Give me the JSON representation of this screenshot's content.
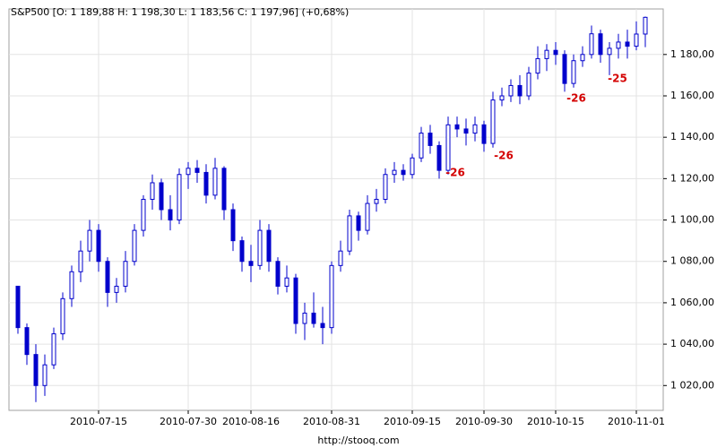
{
  "chart_data": {
    "type": "candlestick",
    "title": "S&P500 [O: 1 189,88  H: 1 198,30  L: 1 183,56  C: 1 197,96] (+0,68%)",
    "footer": "http://stooq.com",
    "color": "#0000cc",
    "grid": true,
    "categories": [
      null,
      null,
      null,
      null,
      null,
      null,
      null,
      null,
      null,
      "2010-07-15",
      null,
      null,
      null,
      null,
      null,
      null,
      null,
      null,
      null,
      "2010-07-30",
      null,
      null,
      null,
      null,
      null,
      null,
      "2010-08-16",
      null,
      null,
      null,
      null,
      null,
      null,
      null,
      null,
      "2010-08-31",
      null,
      null,
      null,
      null,
      null,
      null,
      null,
      null,
      "2010-09-15",
      null,
      null,
      null,
      null,
      null,
      null,
      null,
      "2010-09-30",
      null,
      null,
      null,
      null,
      null,
      null,
      null,
      "2010-10-15",
      null,
      null,
      null,
      null,
      null,
      null,
      null,
      null,
      "2010-11-01",
      null
    ],
    "series": [
      {
        "name": "O",
        "values": [
          1068,
          1048,
          1035,
          1020,
          1030,
          1045,
          1062,
          1075,
          1085,
          1095,
          1080,
          1065,
          1068,
          1080,
          1095,
          1110,
          1118,
          1105,
          1100,
          1122,
          1125,
          1123,
          1112,
          1125,
          1105,
          1090,
          1080,
          1078,
          1095,
          1080,
          1068,
          1072,
          1050,
          1055,
          1050,
          1048,
          1078,
          1085,
          1102,
          1095,
          1108,
          1110,
          1122,
          1124,
          1122,
          1130,
          1142,
          1136,
          1124,
          1146,
          1144,
          1142,
          1146,
          1137,
          1158,
          1160,
          1165,
          1160,
          1171,
          1178,
          1182,
          1180,
          1166,
          1177,
          1180,
          1190,
          1180,
          1183,
          1186,
          1184,
          1189.88
        ]
      },
      {
        "name": "H",
        "values": [
          1068,
          1050,
          1040,
          1035,
          1048,
          1065,
          1078,
          1090,
          1100,
          1098,
          1082,
          1072,
          1085,
          1098,
          1112,
          1122,
          1120,
          1112,
          1125,
          1128,
          1129,
          1127,
          1130,
          1126,
          1108,
          1092,
          1088,
          1100,
          1098,
          1082,
          1078,
          1074,
          1060,
          1065,
          1058,
          1080,
          1090,
          1105,
          1104,
          1112,
          1115,
          1125,
          1128,
          1127,
          1132,
          1145,
          1146,
          1138,
          1150,
          1150,
          1149,
          1150,
          1148,
          1162,
          1164,
          1168,
          1170,
          1174,
          1184,
          1185,
          1186,
          1182,
          1180,
          1184,
          1194,
          1192,
          1186,
          1190,
          1192,
          1196,
          1198.3
        ]
      },
      {
        "name": "L",
        "values": [
          1045,
          1030,
          1012,
          1015,
          1028,
          1042,
          1058,
          1070,
          1080,
          1075,
          1058,
          1060,
          1065,
          1078,
          1092,
          1105,
          1100,
          1095,
          1098,
          1115,
          1118,
          1108,
          1110,
          1100,
          1085,
          1075,
          1070,
          1076,
          1075,
          1064,
          1065,
          1045,
          1042,
          1048,
          1040,
          1045,
          1075,
          1083,
          1090,
          1093,
          1104,
          1108,
          1118,
          1119,
          1120,
          1128,
          1132,
          1120,
          1122,
          1140,
          1136,
          1138,
          1133,
          1135,
          1155,
          1157,
          1156,
          1158,
          1168,
          1172,
          1175,
          1162,
          1164,
          1174,
          1178,
          1176,
          1170,
          1178,
          1178,
          1182,
          1183.56
        ]
      },
      {
        "name": "C",
        "values": [
          1048,
          1035,
          1020,
          1030,
          1045,
          1062,
          1075,
          1085,
          1095,
          1080,
          1065,
          1068,
          1080,
          1095,
          1110,
          1118,
          1105,
          1100,
          1122,
          1125,
          1123,
          1112,
          1125,
          1105,
          1090,
          1080,
          1078,
          1095,
          1080,
          1068,
          1072,
          1050,
          1055,
          1050,
          1048,
          1078,
          1085,
          1102,
          1095,
          1108,
          1110,
          1122,
          1124,
          1122,
          1130,
          1142,
          1136,
          1124,
          1146,
          1144,
          1142,
          1146,
          1137,
          1158,
          1160,
          1165,
          1160,
          1171,
          1178,
          1182,
          1180,
          1166,
          1177,
          1180,
          1190,
          1180,
          1183,
          1186,
          1184,
          1189.88,
          1197.96
        ]
      }
    ],
    "ylim": [
      1008,
      1202
    ],
    "yticks": [
      {
        "value": 1020,
        "label": "1 020,00"
      },
      {
        "value": 1040,
        "label": "1 040,00"
      },
      {
        "value": 1060,
        "label": "1 060,00"
      },
      {
        "value": 1080,
        "label": "1 080,00"
      },
      {
        "value": 1100,
        "label": "1 100,00"
      },
      {
        "value": 1120,
        "label": "1 120,00"
      },
      {
        "value": 1140,
        "label": "1 140,00"
      },
      {
        "value": 1160,
        "label": "1 160,00"
      },
      {
        "value": 1180,
        "label": "1 180,00"
      }
    ],
    "annotations": [
      "-26",
      "-26",
      "-26",
      "-25"
    ]
  }
}
